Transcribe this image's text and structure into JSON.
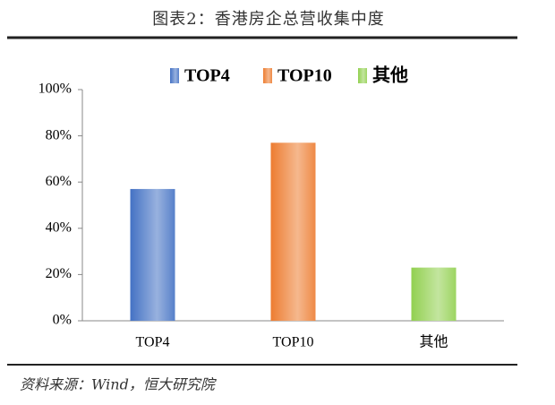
{
  "chart_data": {
    "type": "bar",
    "title": "图表2：香港房企总营收集中度",
    "source": "资料来源：Wind，恒大研究院",
    "categories": [
      "TOP4",
      "TOP10",
      "其他"
    ],
    "values": [
      57,
      77,
      23
    ],
    "colors": [
      "#4472c4",
      "#ed7d31",
      "#92d050"
    ],
    "ylim": [
      0,
      100
    ],
    "yticks": [
      {
        "value": 0,
        "label": "0%"
      },
      {
        "value": 20,
        "label": "20%"
      },
      {
        "value": 40,
        "label": "40%"
      },
      {
        "value": 60,
        "label": "60%"
      },
      {
        "value": 80,
        "label": "80%"
      },
      {
        "value": 100,
        "label": "100%"
      }
    ],
    "grid": false,
    "legend": "top"
  }
}
